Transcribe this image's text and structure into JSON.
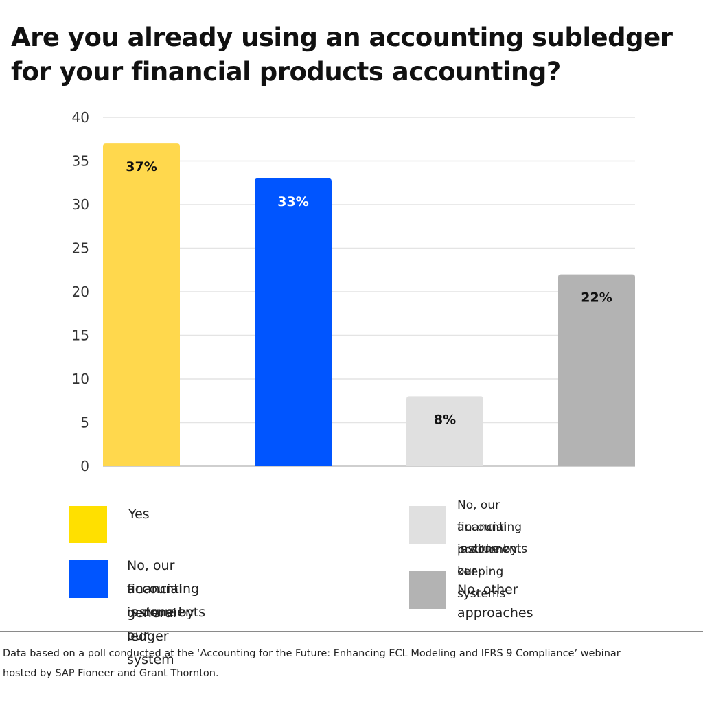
{
  "title_lines": [
    "Are you already using an accounting subledger",
    "for your financial products accounting?"
  ],
  "chart_data": {
    "type": "bar",
    "categories": [
      "Yes",
      "No, our financial instruments accounting is done by our general ledger system",
      "No, our financial instruments accounting is done by our position-keeping systems",
      "No, other approaches"
    ],
    "values": [
      37,
      33,
      8,
      22
    ],
    "data_labels": [
      "37%",
      "33%",
      "8%",
      "22%"
    ],
    "colors": [
      "#FFD84D",
      "#0055FF",
      "#E0E0E0",
      "#B3B3B3"
    ],
    "label_colors": [
      "#111111",
      "#FFFFFF",
      "#111111",
      "#111111"
    ],
    "ylim": [
      0,
      40
    ],
    "yticks": [
      0,
      5,
      10,
      15,
      20,
      25,
      30,
      35,
      40
    ],
    "grid": true,
    "legend_position": "bottom"
  },
  "legend": {
    "yes": {
      "label": "Yes",
      "color": "#FFE000"
    },
    "general_ledger": {
      "lines": [
        "No, our financial instruments",
        "accounting is done by our",
        "general ledger system"
      ],
      "color": "#0055FF"
    },
    "position_keeping": {
      "lines": [
        "No, our financial instruments",
        "accounting is done by our",
        "position-keeping systems"
      ],
      "color": "#E0E0E0"
    },
    "other": {
      "label": "No, other approaches",
      "color": "#B3B3B3"
    }
  },
  "footnote_lines": [
    "Data based on a poll conducted at the ‘Accounting for the Future:  Enhancing ECL Modeling and IFRS 9 Compliance’ webinar",
    "hosted by SAP Fioneer and Grant Thornton."
  ]
}
